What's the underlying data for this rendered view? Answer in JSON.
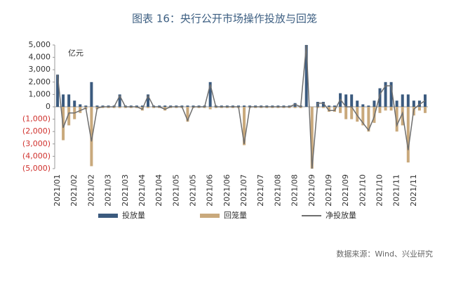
{
  "chart_data": {
    "type": "bar-line",
    "title": "图表 16：央行公开市场操作投放与回笼",
    "unit_label": "亿元",
    "source": "数据来源：Wind、兴业研究",
    "categories": [
      "2021/01",
      null,
      null,
      "2021/02",
      null,
      null,
      "2021/02",
      null,
      null,
      "2021/03",
      null,
      null,
      "2021/03",
      null,
      null,
      "2021/04",
      null,
      null,
      "2021/04",
      null,
      null,
      "2021/05",
      null,
      null,
      "2021/05",
      null,
      null,
      "2021/06",
      null,
      null,
      "2021/06",
      null,
      null,
      "2021/07",
      null,
      null,
      "2021/07",
      null,
      null,
      "2021/08",
      null,
      null,
      "2021/08",
      null,
      null,
      "2021/09",
      null,
      null,
      "2021/09",
      null,
      null,
      "2021/09",
      null,
      null,
      "2021/10",
      null,
      null,
      "2021/10",
      null,
      null,
      "2021/11",
      null,
      null,
      "2021/11",
      null,
      null
    ],
    "series": [
      {
        "name": "投放量",
        "kind": "bar",
        "color": "#3b5a7e",
        "values": [
          2600,
          1000,
          1000,
          500,
          200,
          100,
          2000,
          100,
          100,
          100,
          100,
          1000,
          100,
          100,
          100,
          100,
          1000,
          100,
          100,
          100,
          100,
          100,
          100,
          100,
          100,
          100,
          100,
          2000,
          100,
          100,
          100,
          100,
          100,
          100,
          100,
          100,
          100,
          100,
          100,
          100,
          100,
          100,
          300,
          100,
          5000,
          0,
          400,
          400,
          100,
          100,
          1100,
          1000,
          1000,
          500,
          200,
          100,
          500,
          1500,
          2000,
          2000,
          500,
          1000,
          1000,
          500,
          500,
          1000
        ]
      },
      {
        "name": "回笼量",
        "kind": "bar",
        "color": "#c9a97c",
        "values": [
          0,
          -2700,
          -1500,
          -1000,
          -500,
          -200,
          -4800,
          -200,
          -100,
          -100,
          -100,
          -100,
          -100,
          -100,
          -100,
          -300,
          -100,
          -100,
          -100,
          -300,
          -100,
          -100,
          -100,
          -1200,
          -100,
          -100,
          -100,
          -200,
          -100,
          -100,
          -100,
          -100,
          -100,
          -3100,
          -100,
          -100,
          -100,
          -100,
          -100,
          -100,
          -100,
          -100,
          -100,
          -100,
          0,
          -5000,
          -100,
          -100,
          -400,
          -400,
          -500,
          -1000,
          -1000,
          -1200,
          -1500,
          -2000,
          -1300,
          -500,
          -300,
          -300,
          -2000,
          -1500,
          -4500,
          -700,
          -300,
          -500
        ]
      },
      {
        "name": "净投放量",
        "kind": "line",
        "color": "#6e6e6e",
        "values": [
          2600,
          -1700,
          -500,
          -500,
          -300,
          -100,
          -2800,
          -100,
          0,
          0,
          0,
          900,
          0,
          0,
          0,
          -200,
          900,
          0,
          0,
          -200,
          0,
          0,
          0,
          -1100,
          0,
          0,
          0,
          1800,
          0,
          0,
          0,
          0,
          0,
          -3000,
          0,
          0,
          0,
          0,
          0,
          0,
          0,
          0,
          200,
          0,
          5000,
          -5000,
          300,
          300,
          -300,
          -300,
          600,
          0,
          0,
          -700,
          -1300,
          -1900,
          -800,
          1000,
          1700,
          1700,
          -1500,
          -500,
          -3500,
          -200,
          200,
          500
        ]
      }
    ],
    "ylim": [
      -5000,
      5000
    ],
    "yticks": [
      {
        "value": 5000,
        "label": "5,000"
      },
      {
        "value": 4000,
        "label": "4,000"
      },
      {
        "value": 3000,
        "label": "3,000"
      },
      {
        "value": 2000,
        "label": "2,000"
      },
      {
        "value": 1000,
        "label": "1,000"
      },
      0,
      {
        "value": -1000,
        "label": "(1,000)"
      },
      {
        "value": -2000,
        "label": "(2,000)"
      },
      {
        "value": -3000,
        "label": "(3,000)"
      },
      {
        "value": -4000,
        "label": "(4,000)"
      },
      {
        "value": -5000,
        "label": "(5,000)"
      }
    ],
    "negative_tick_color": "#d0312d"
  }
}
